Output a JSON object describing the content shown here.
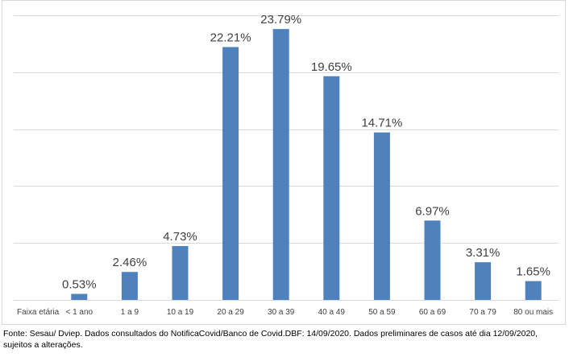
{
  "chart_data": {
    "type": "bar",
    "title": "",
    "xlabel": "Faixa etária",
    "ylabel": "",
    "categories": [
      "< 1 ano",
      "1 a 9",
      "10 a 19",
      "20 a 29",
      "30 a 39",
      "40 a 49",
      "50 a 59",
      "60 a 69",
      "70 a 79",
      "80 ou mais"
    ],
    "values": [
      0.53,
      2.46,
      4.73,
      22.21,
      23.79,
      19.65,
      14.71,
      6.97,
      3.31,
      1.65
    ],
    "data_labels": [
      "0.53%",
      "2.46%",
      "4.73%",
      "22.21%",
      "23.79%",
      "19.65%",
      "14.71%",
      "6.97%",
      "3.31%",
      "1.65%"
    ],
    "ylim": [
      0,
      25
    ],
    "grid": true,
    "legend": "none",
    "bar_color": "#4f81bd",
    "grid_color": "#d9d9d9"
  },
  "footer": {
    "source": "Fonte: Sesau/ Dviep. Dados consultados do NotificaCovid/Banco de Covid.DBF: 14/09/2020. Dados preliminares de casos até dia 12/09/2020, sujeitos a alterações."
  }
}
